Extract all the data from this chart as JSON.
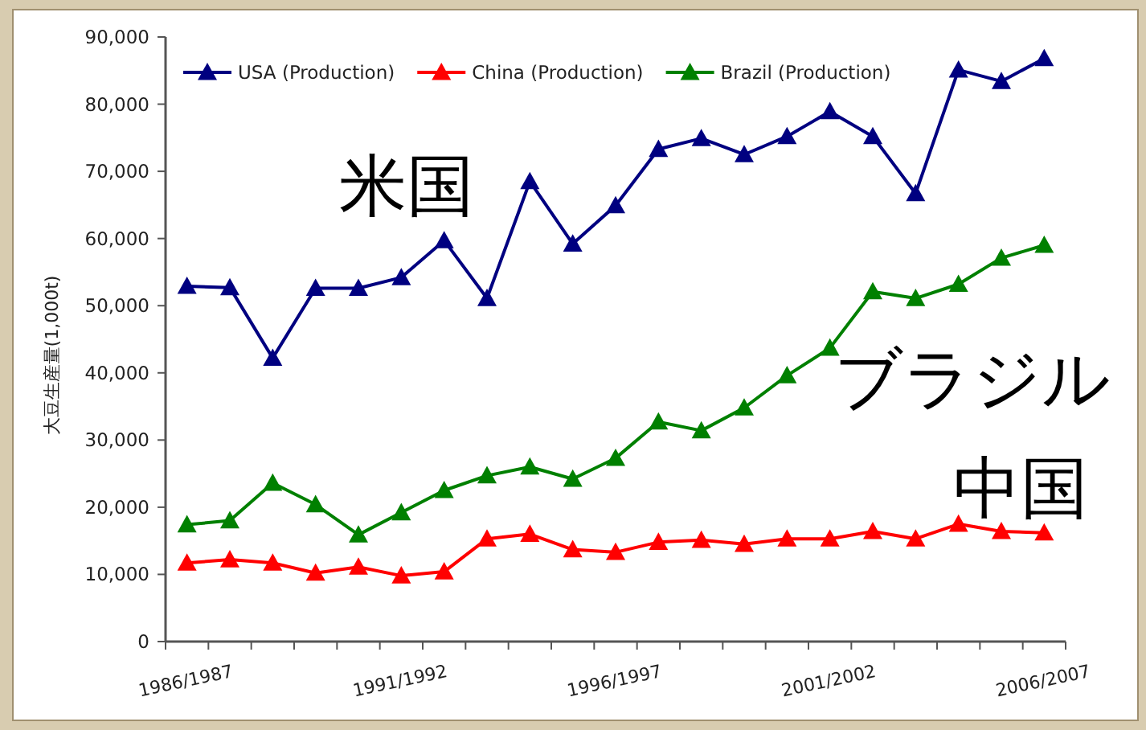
{
  "chart_data": {
    "type": "line",
    "ylabel": "大豆生産量(1,000t)",
    "categories": [
      "1986/1987",
      null,
      null,
      null,
      null,
      "1991/1992",
      null,
      null,
      null,
      null,
      "1996/1997",
      null,
      null,
      null,
      null,
      "2001/2002",
      null,
      null,
      null,
      null,
      "2006/2007"
    ],
    "series": [
      {
        "name": "USA (Production)",
        "color": "#000080",
        "values": [
          52900.0,
          52700.0,
          42200.0,
          52600.0,
          52600.0,
          54200.0,
          59700.0,
          51100.0,
          68500.0,
          59200.0,
          64900.0,
          73300.0,
          74900.0,
          72500.0,
          75200.0,
          78900.0,
          75200.0,
          66700.0,
          85100.0,
          83400.0,
          86800.0
        ]
      },
      {
        "name": "China (Production)",
        "color": "#ff0000",
        "values": [
          11700.0,
          12200.0,
          11700.0,
          10200.0,
          11100.0,
          9800.0,
          10400.0,
          15300.0,
          16000.0,
          13700.0,
          13300.0,
          14800.0,
          15100.0,
          14500.0,
          15300.0,
          15300.0,
          16400.0,
          15300.0,
          17500.0,
          16400.0,
          16200.0
        ]
      },
      {
        "name": "Brazil (Production)",
        "color": "#008000",
        "values": [
          17400.0,
          18000.0,
          23600.0,
          20400.0,
          15900.0,
          19200.0,
          22500.0,
          24700.0,
          26000.0,
          24200.0,
          27300.0,
          32700.0,
          31400.0,
          34800.0,
          39600.0,
          43700.0,
          52100.0,
          51100.0,
          53200.0,
          57100.0,
          59000.0
        ]
      }
    ],
    "ylim": [
      0,
      90000
    ],
    "yticks": [
      {
        "value": 0,
        "label": "0"
      },
      {
        "value": 10000,
        "label": "10,000"
      },
      {
        "value": 20000,
        "label": "20,000"
      },
      {
        "value": 30000,
        "label": "30,000"
      },
      {
        "value": 40000,
        "label": "40,000"
      },
      {
        "value": 50000,
        "label": "50,000"
      },
      {
        "value": 60000,
        "label": "60,000"
      },
      {
        "value": 70000,
        "label": "70,000"
      },
      {
        "value": 80000,
        "label": "80,000"
      },
      {
        "value": 90000,
        "label": "90,000"
      }
    ],
    "marker": "triangle",
    "line_style": "solid",
    "legend": "top",
    "grid": false,
    "annotations": [
      "米国",
      "ブラジル",
      "中国"
    ]
  }
}
